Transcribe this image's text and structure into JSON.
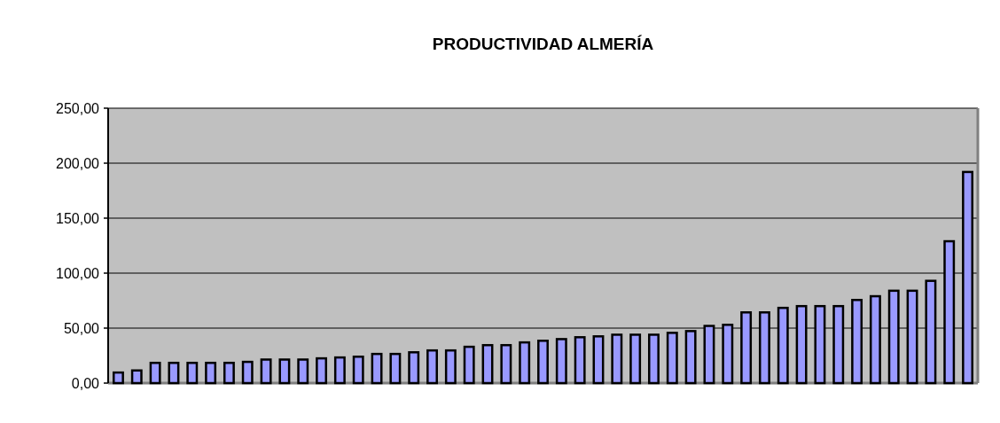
{
  "chart_data": {
    "type": "bar",
    "title": "PRODUCTIVIDAD ALMERÍA",
    "categories": [
      null,
      null,
      null,
      null,
      null,
      null,
      null,
      null,
      null,
      null,
      null,
      null,
      null,
      null,
      null,
      null,
      null,
      null,
      null,
      null,
      null,
      null,
      null,
      null,
      null,
      null,
      null,
      null,
      null,
      null,
      null,
      null,
      null,
      null,
      null,
      null,
      null,
      null,
      null,
      null,
      null,
      null,
      null,
      null,
      null,
      null,
      null
    ],
    "values": [
      9.6,
      11.5,
      18.4,
      18.4,
      18.4,
      18.4,
      18.4,
      19.3,
      21.4,
      21.4,
      21.4,
      22.5,
      23.3,
      24,
      26.5,
      26.5,
      28,
      29.7,
      29.7,
      33,
      34.5,
      34.5,
      37,
      38.5,
      40,
      41.7,
      42.5,
      44,
      44,
      44,
      45.7,
      47.3,
      52,
      53,
      64.3,
      64.3,
      68.4,
      70,
      70,
      70,
      75.6,
      79,
      84,
      84,
      93,
      129,
      192
    ],
    "color": "#9999ff",
    "ylim": [
      0,
      250
    ],
    "yticks": [
      {
        "value": 0,
        "label": "0,00"
      },
      {
        "value": 50,
        "label": "50,00"
      },
      {
        "value": 100,
        "label": "100,00"
      },
      {
        "value": 150,
        "label": "150,00"
      },
      {
        "value": 200,
        "label": "200,00"
      },
      {
        "value": 250,
        "label": "250,00"
      }
    ],
    "grid": "y"
  }
}
